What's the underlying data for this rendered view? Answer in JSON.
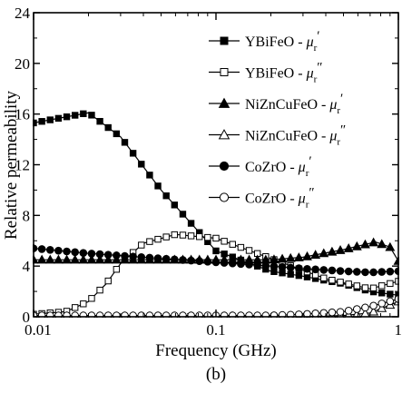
{
  "chart_data": {
    "type": "line",
    "x_scale": "log",
    "xlim": [
      0.01,
      1
    ],
    "ylim": [
      0,
      24
    ],
    "xlabel": "Frequency (GHz)",
    "ylabel": "Relative permeability",
    "caption": "(b)",
    "x_ticks": [
      {
        "value": 0.01,
        "label": "0.01"
      },
      {
        "value": 0.1,
        "label": "0.1"
      },
      {
        "value": 1,
        "label": "1"
      }
    ],
    "y_ticks": [
      {
        "value": 0,
        "label": "0"
      },
      {
        "value": 4,
        "label": "4"
      },
      {
        "value": 8,
        "label": "8"
      },
      {
        "value": 12,
        "label": "12"
      },
      {
        "value": 16,
        "label": "16"
      },
      {
        "value": 20,
        "label": "20"
      },
      {
        "value": 24,
        "label": "24"
      }
    ],
    "legend_position": "top-right",
    "grid": false,
    "series": [
      {
        "name": "YBiFeO - μr′",
        "legend_main": "YBiFeO - ",
        "legend_sym": "μ",
        "legend_sub": "r",
        "legend_prime": "′",
        "marker": "square",
        "filled": true,
        "x": [
          0.01,
          0.02,
          0.03,
          0.05,
          0.1,
          0.2,
          0.3,
          0.5,
          0.7,
          1.0
        ],
        "y": [
          15.3,
          16.1,
          14.2,
          10.0,
          5.2,
          3.6,
          3.2,
          2.6,
          2.0,
          1.7
        ]
      },
      {
        "name": "YBiFeO - μr″",
        "legend_main": "YBiFeO - ",
        "legend_sym": "μ",
        "legend_sub": "r",
        "legend_prime": "″",
        "marker": "square",
        "filled": false,
        "x": [
          0.01,
          0.015,
          0.02,
          0.025,
          0.03,
          0.04,
          0.06,
          0.1,
          0.2,
          0.4,
          0.7,
          1.0
        ],
        "y": [
          0.2,
          0.4,
          1.2,
          2.6,
          4.2,
          5.8,
          6.5,
          6.2,
          4.6,
          3.0,
          2.2,
          2.8
        ]
      },
      {
        "name": "NiZnCuFeO - μr′",
        "legend_main": "NiZnCuFeO - ",
        "legend_sym": "μ",
        "legend_sub": "r",
        "legend_prime": "′",
        "marker": "triangle",
        "filled": true,
        "x": [
          0.01,
          0.03,
          0.1,
          0.2,
          0.3,
          0.5,
          0.75,
          0.9,
          1.0
        ],
        "y": [
          4.5,
          4.5,
          4.5,
          4.5,
          4.7,
          5.3,
          5.9,
          5.5,
          4.4
        ]
      },
      {
        "name": "NiZnCuFeO - μr″",
        "legend_main": "NiZnCuFeO - ",
        "legend_sym": "μ",
        "legend_sub": "r",
        "legend_prime": "″",
        "marker": "triangle",
        "filled": false,
        "x": [
          0.01,
          0.1,
          0.3,
          0.5,
          0.7,
          1.0
        ],
        "y": [
          0.0,
          0.0,
          0.0,
          0.1,
          0.3,
          1.2
        ]
      },
      {
        "name": "CoZrO - μr′",
        "legend_main": "CoZrO - ",
        "legend_sym": "μ",
        "legend_sub": "r",
        "legend_prime": "′",
        "marker": "circle",
        "filled": true,
        "x": [
          0.01,
          0.02,
          0.05,
          0.1,
          0.2,
          0.3,
          0.5,
          0.7,
          1.0
        ],
        "y": [
          5.4,
          5.0,
          4.6,
          4.3,
          4.0,
          3.8,
          3.6,
          3.5,
          3.6
        ]
      },
      {
        "name": "CoZrO - μr″",
        "legend_main": "CoZrO - ",
        "legend_sym": "μ",
        "legend_sub": "r",
        "legend_prime": "″",
        "marker": "circle",
        "filled": false,
        "x": [
          0.01,
          0.03,
          0.1,
          0.2,
          0.3,
          0.5,
          0.7,
          1.0
        ],
        "y": [
          0.1,
          0.1,
          0.1,
          0.1,
          0.2,
          0.4,
          0.8,
          1.4
        ]
      }
    ]
  }
}
